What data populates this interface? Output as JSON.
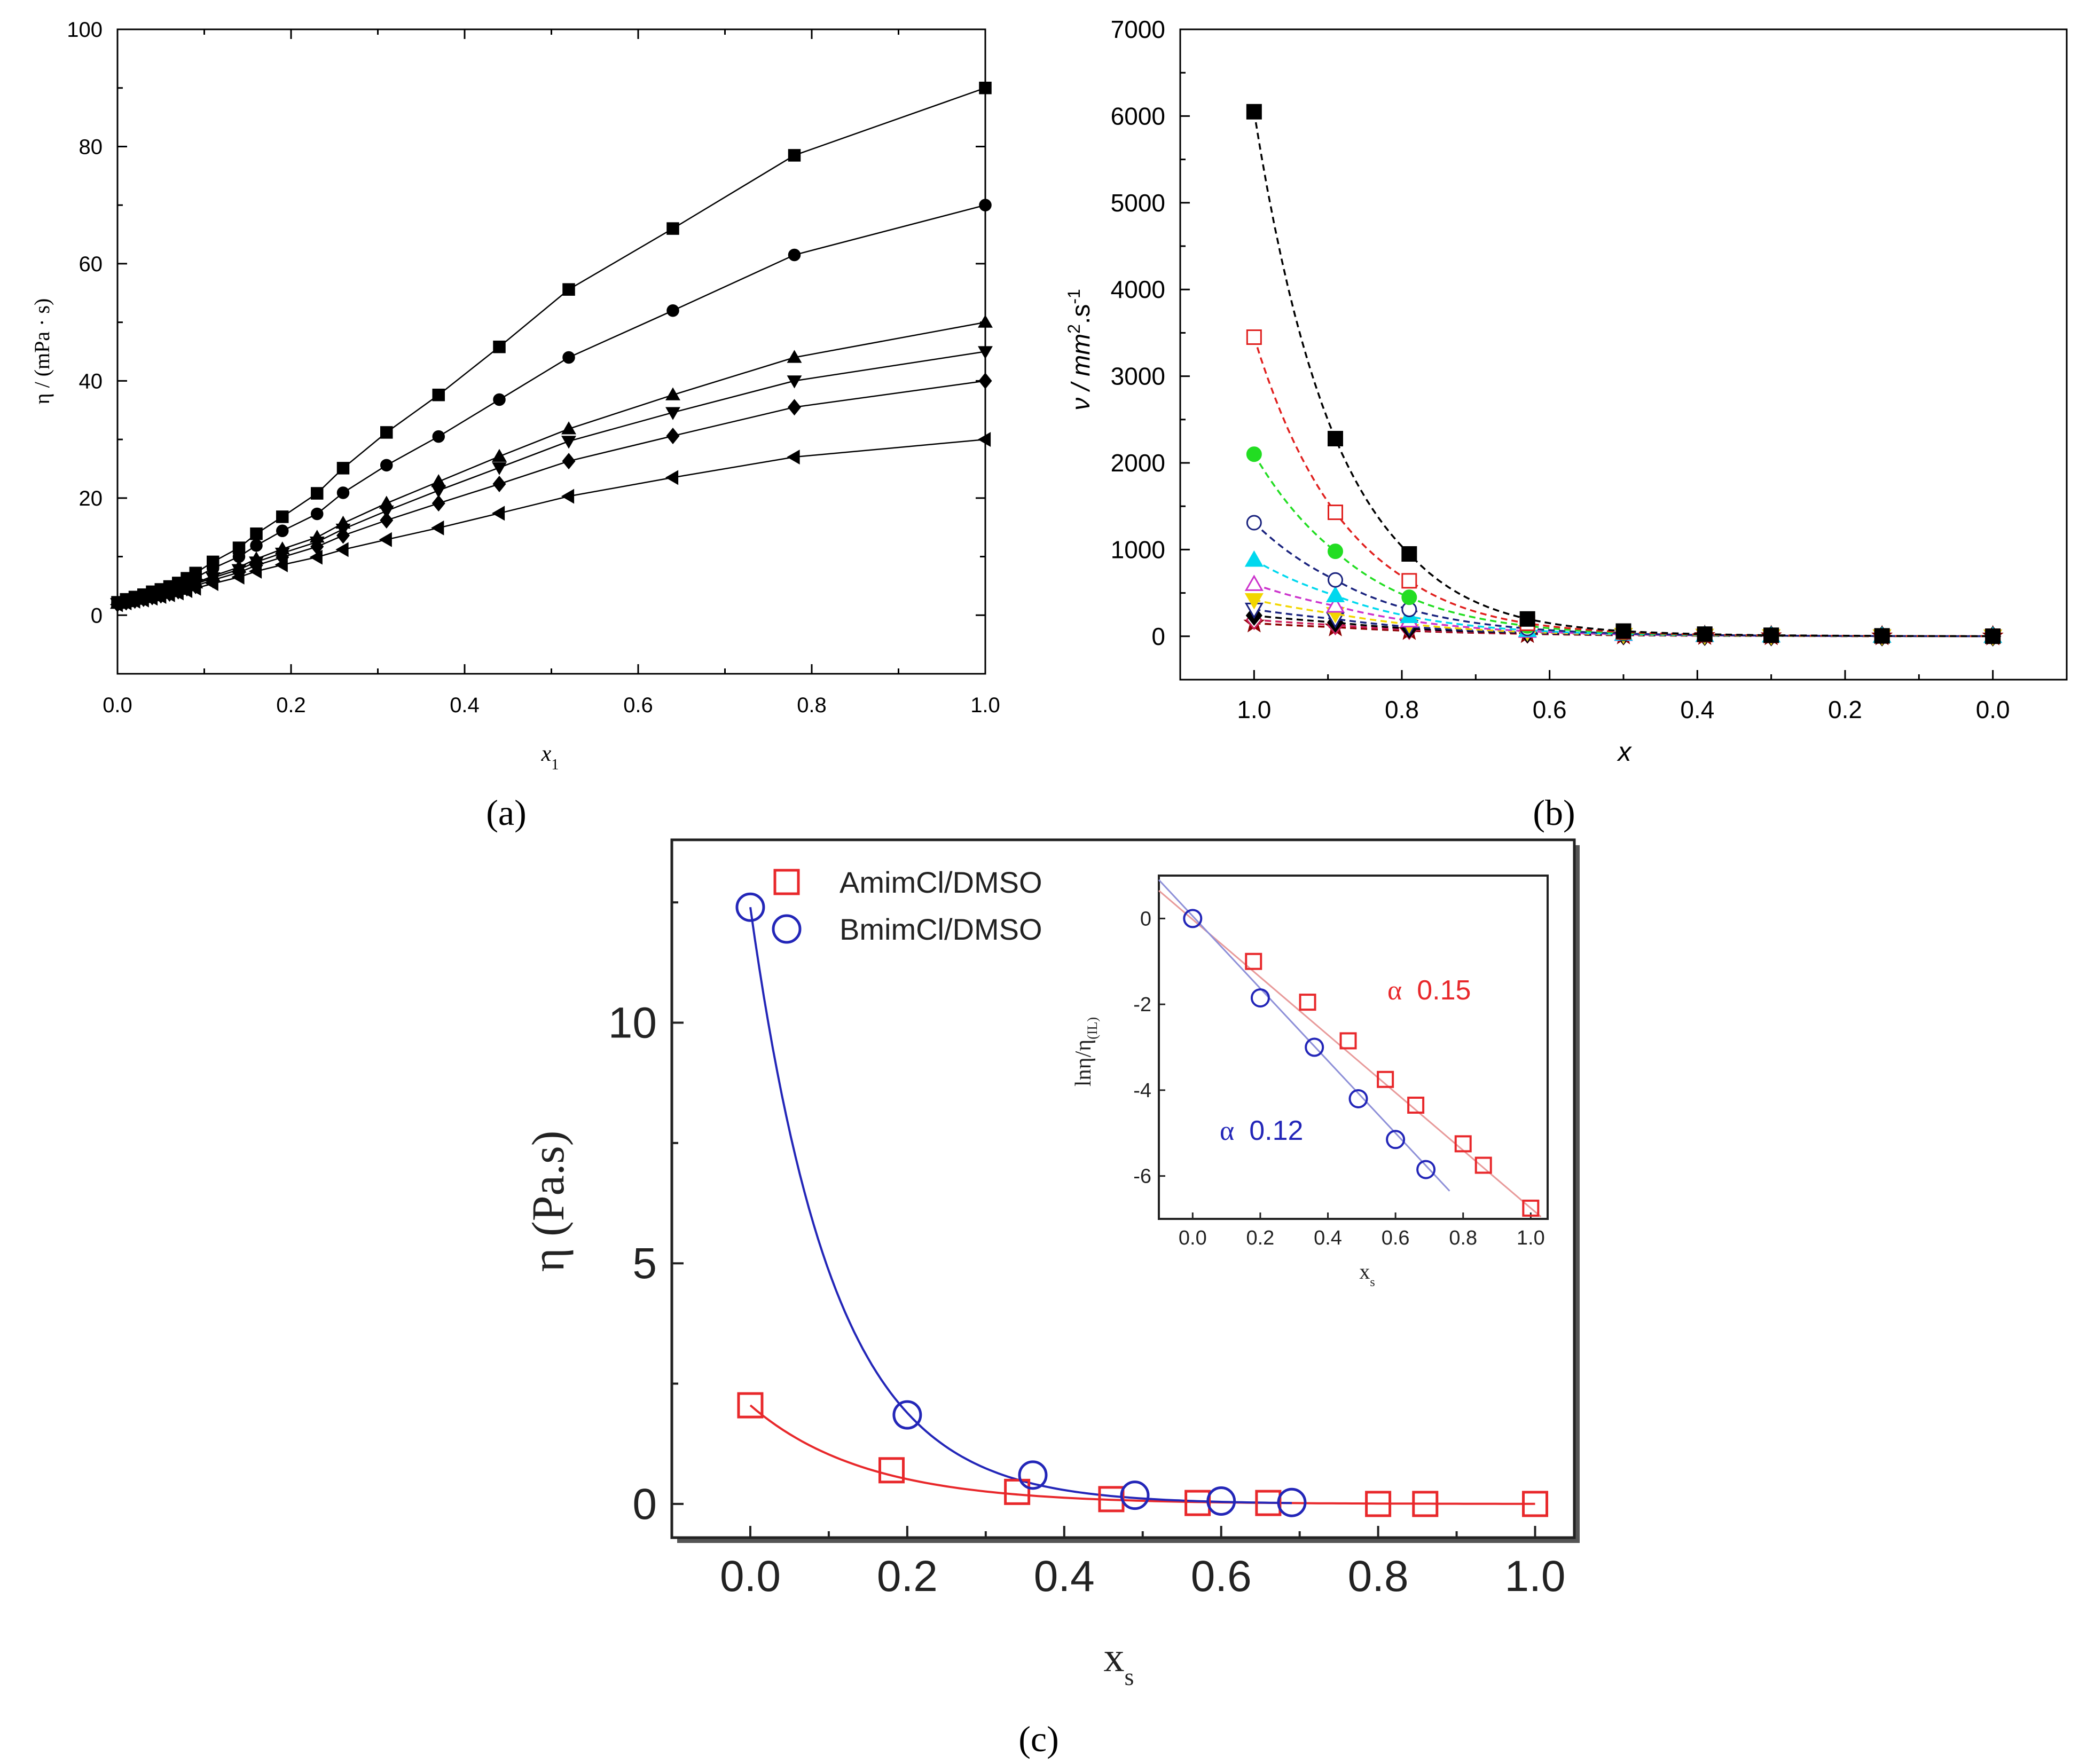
{
  "figure": {
    "panel_labels": [
      "(a)",
      "(b)",
      "(c)"
    ]
  },
  "chart_data": [
    {
      "id": "a",
      "type": "line",
      "xlabel": "x",
      "xlabel_sub": "1",
      "ylabel": "η / (mPa · s)",
      "xlim": [
        0,
        1
      ],
      "ylim": [
        -10,
        100
      ],
      "xticks": [
        0,
        0.2,
        0.4,
        0.6,
        0.8,
        1.0
      ],
      "xtick_labels": [
        "0.0",
        "0.2",
        "0.4",
        "0.6",
        "0.8",
        "1.0"
      ],
      "yticks": [
        0,
        20,
        40,
        60,
        80,
        100
      ],
      "ytick_labels": [
        "0",
        "20",
        "40",
        "60",
        "80",
        "100"
      ],
      "x": [
        0,
        0.01,
        0.02,
        0.03,
        0.04,
        0.05,
        0.06,
        0.07,
        0.08,
        0.09,
        0.11,
        0.14,
        0.16,
        0.19,
        0.23,
        0.26,
        0.31,
        0.37,
        0.44,
        0.52,
        0.64,
        0.78,
        1.0
      ],
      "series": [
        {
          "name": "square",
          "marker": "square",
          "values": [
            2.2,
            2.7,
            3.1,
            3.5,
            4.0,
            4.4,
            4.9,
            5.5,
            6.3,
            7.2,
            9.1,
            11.5,
            13.9,
            16.8,
            20.8,
            25.1,
            31.2,
            37.6,
            45.8,
            55.6,
            66.0,
            78.5,
            90.0
          ]
        },
        {
          "name": "circle",
          "marker": "circle",
          "values": [
            2.1,
            2.5,
            2.9,
            3.3,
            3.7,
            4.1,
            4.5,
            5.0,
            5.7,
            6.4,
            8.0,
            10.0,
            11.9,
            14.4,
            17.3,
            20.9,
            25.6,
            30.5,
            36.8,
            44.0,
            52.0,
            61.5,
            70.0
          ]
        },
        {
          "name": "triangle-up",
          "marker": "triangle-up",
          "values": [
            2.0,
            2.3,
            2.7,
            3.0,
            3.3,
            3.7,
            4.0,
            4.4,
            5.0,
            5.5,
            6.7,
            8.2,
            9.6,
            11.3,
            13.3,
            15.7,
            19.1,
            22.8,
            27.1,
            31.8,
            37.6,
            44.0,
            50.0
          ]
        },
        {
          "name": "triangle-down",
          "marker": "triangle-down",
          "values": [
            2.0,
            2.3,
            2.6,
            2.9,
            3.2,
            3.6,
            3.9,
            4.3,
            4.8,
            5.3,
            6.4,
            7.8,
            9.1,
            10.6,
            12.5,
            14.7,
            17.8,
            21.3,
            25.2,
            29.7,
            34.6,
            40.0,
            45.0
          ]
        },
        {
          "name": "diamond",
          "marker": "diamond",
          "values": [
            1.9,
            2.2,
            2.5,
            2.8,
            3.1,
            3.4,
            3.7,
            4.1,
            4.6,
            5.0,
            6.0,
            7.3,
            8.5,
            9.9,
            11.7,
            13.6,
            16.2,
            19.1,
            22.4,
            26.3,
            30.6,
            35.5,
            40.0
          ]
        },
        {
          "name": "triangle-left",
          "marker": "triangle-left",
          "values": [
            1.8,
            2.1,
            2.4,
            2.6,
            2.9,
            3.2,
            3.5,
            3.8,
            4.2,
            4.6,
            5.4,
            6.5,
            7.5,
            8.6,
            9.9,
            11.2,
            12.9,
            14.9,
            17.4,
            20.3,
            23.5,
            27.0,
            30.0
          ]
        }
      ]
    },
    {
      "id": "b",
      "type": "line",
      "xlabel": "x",
      "ylabel": "ν / mm",
      "ylabel_sup1": "2",
      "ylabel_mid": ".s",
      "ylabel_sup2": "-1",
      "xlim": [
        1.1,
        -0.1
      ],
      "ylim": [
        -500,
        7000
      ],
      "xticks": [
        1.0,
        0.8,
        0.6,
        0.4,
        0.2,
        0.0
      ],
      "xtick_labels": [
        "1.0",
        "0.8",
        "0.6",
        "0.4",
        "0.2",
        "0.0"
      ],
      "yticks": [
        0,
        1000,
        2000,
        3000,
        4000,
        5000,
        6000,
        7000
      ],
      "ytick_labels": [
        "0",
        "1000",
        "2000",
        "3000",
        "4000",
        "5000",
        "6000",
        "7000"
      ],
      "x": [
        1.0,
        0.89,
        0.79,
        0.63,
        0.5,
        0.39,
        0.3,
        0.15,
        0.0
      ],
      "series": [
        {
          "name": "s1",
          "marker": "square-filled",
          "color": "#000000",
          "values": [
            6050,
            2280,
            950,
            200,
            60,
            25,
            12,
            5,
            1
          ]
        },
        {
          "name": "s2",
          "marker": "square-open",
          "color": "#e0201e",
          "values": [
            3450,
            1430,
            640,
            150,
            50,
            20,
            10,
            4,
            1
          ]
        },
        {
          "name": "s3",
          "marker": "circle-filled",
          "color": "#22dd22",
          "values": [
            2100,
            980,
            450,
            120,
            40,
            17,
            9,
            4,
            1
          ]
        },
        {
          "name": "s4",
          "marker": "circle-open",
          "color": "#1a237e",
          "values": [
            1310,
            650,
            310,
            90,
            32,
            15,
            8,
            3,
            1
          ]
        },
        {
          "name": "s5",
          "marker": "triangle-filled",
          "color": "#00d8ee",
          "values": [
            880,
            470,
            230,
            70,
            27,
            13,
            7,
            3,
            1
          ]
        },
        {
          "name": "s6",
          "marker": "triangle-open",
          "color": "#cc33cc",
          "values": [
            600,
            350,
            180,
            60,
            23,
            11,
            6,
            3,
            1
          ]
        },
        {
          "name": "s7",
          "marker": "triangle-down-filled",
          "color": "#f2d600",
          "values": [
            420,
            260,
            140,
            50,
            20,
            10,
            5,
            2,
            1
          ]
        },
        {
          "name": "s8",
          "marker": "triangle-down-open",
          "color": "#1a237e",
          "values": [
            310,
            200,
            110,
            43,
            18,
            9,
            5,
            2,
            1
          ]
        },
        {
          "name": "s9",
          "marker": "diamond-filled",
          "color": "#000000",
          "values": [
            240,
            160,
            90,
            37,
            16,
            8,
            4,
            2,
            1
          ]
        },
        {
          "name": "s10",
          "marker": "diamond-open",
          "color": "#cc1f5a",
          "values": [
            190,
            130,
            76,
            32,
            14,
            7,
            4,
            2,
            1
          ]
        },
        {
          "name": "s11",
          "marker": "star",
          "color": "#8b0000",
          "values": [
            150,
            105,
            63,
            28,
            12,
            6,
            3,
            2,
            1
          ]
        }
      ]
    },
    {
      "id": "c",
      "type": "scatter",
      "xlabel": "x",
      "xlabel_sub": "s",
      "ylabel": "η (Pa.s)",
      "xlim": [
        -0.1,
        1.05
      ],
      "ylim": [
        -0.7,
        13.8
      ],
      "xticks": [
        0,
        0.2,
        0.4,
        0.6,
        0.8,
        1.0
      ],
      "xtick_labels": [
        "0.0",
        "0.2",
        "0.4",
        "0.6",
        "0.8",
        "1.0"
      ],
      "yticks": [
        0,
        5,
        10
      ],
      "ytick_labels": [
        "0",
        "5",
        "10"
      ],
      "legend": [
        "AmimCl/DMSO",
        "BmimCl/DMSO"
      ],
      "legend_position": "top-left",
      "series": [
        {
          "name": "AmimCl/DMSO",
          "marker": "square-open",
          "color": "#e8282b",
          "x": [
            0.0,
            0.18,
            0.34,
            0.46,
            0.57,
            0.66,
            0.8,
            0.86,
            1.0
          ],
          "y": [
            2.05,
            0.7,
            0.25,
            0.1,
            0.02,
            0.02,
            0.0,
            0.0,
            0.0
          ]
        },
        {
          "name": "BmimCl/DMSO",
          "marker": "circle-open",
          "color": "#2326b8",
          "x": [
            0.0,
            0.2,
            0.36,
            0.49,
            0.6,
            0.69
          ],
          "y": [
            12.4,
            1.85,
            0.6,
            0.18,
            0.06,
            0.03
          ]
        }
      ],
      "inset": {
        "type": "scatter",
        "xlabel": "x",
        "xlabel_sub": "s",
        "ylabel": "lnη/η",
        "ylabel_sub": "(IL)",
        "xlim": [
          -0.1,
          1.05
        ],
        "ylim": [
          -7,
          1
        ],
        "xticks": [
          0,
          0.2,
          0.4,
          0.6,
          0.8,
          1.0
        ],
        "xtick_labels": [
          "0.0",
          "0.2",
          "0.4",
          "0.6",
          "0.8",
          "1.0"
        ],
        "yticks": [
          0,
          -2,
          -4,
          -6
        ],
        "ytick_labels": [
          "0",
          "-2",
          "-4",
          "-6"
        ],
        "annotations": [
          {
            "symbol": "α",
            "text": "0.15",
            "color": "#e8282b"
          },
          {
            "symbol": "α",
            "text": "0.12",
            "color": "#2326b8"
          }
        ],
        "series": [
          {
            "name": "AmimCl/DMSO",
            "color": "#e8282b",
            "x": [
              0.18,
              0.34,
              0.46,
              0.57,
              0.66,
              0.8,
              0.86,
              1.0
            ],
            "y": [
              -1.0,
              -1.95,
              -2.85,
              -3.75,
              -4.35,
              -5.25,
              -5.75,
              -6.75
            ]
          },
          {
            "name": "BmimCl/DMSO",
            "color": "#2326b8",
            "x": [
              0.0,
              0.2,
              0.36,
              0.49,
              0.6,
              0.69
            ],
            "y": [
              0.0,
              -1.85,
              -3.0,
              -4.2,
              -5.15,
              -5.85
            ]
          }
        ]
      }
    }
  ]
}
